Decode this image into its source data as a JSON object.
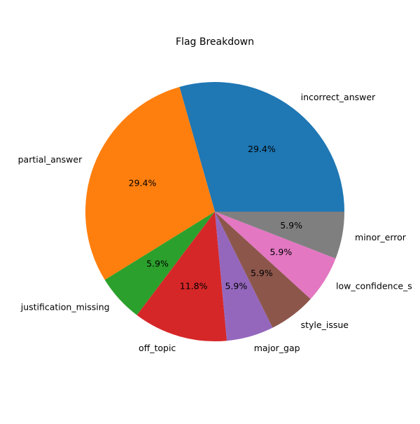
{
  "chart_data": {
    "type": "pie",
    "title": "Flag Breakdown",
    "start_angle_deg": 0,
    "direction": "counterclockwise",
    "slices": [
      {
        "label": "incorrect_answer",
        "value": 5,
        "pct_label": "29.4%",
        "color": "#1f77b4"
      },
      {
        "label": "partial_answer",
        "value": 5,
        "pct_label": "29.4%",
        "color": "#ff7f0e"
      },
      {
        "label": "justification_missing",
        "value": 1,
        "pct_label": "5.9%",
        "color": "#2ca02c"
      },
      {
        "label": "off_topic",
        "value": 2,
        "pct_label": "11.8%",
        "color": "#d62728"
      },
      {
        "label": "major_gap",
        "value": 1,
        "pct_label": "5.9%",
        "color": "#9467bd"
      },
      {
        "label": "style_issue",
        "value": 1,
        "pct_label": "5.9%",
        "color": "#8c564b"
      },
      {
        "label": "low_confidence_s",
        "value": 1,
        "pct_label": "5.9%",
        "color": "#e377c2"
      },
      {
        "label": "minor_error",
        "value": 1,
        "pct_label": "5.9%",
        "color": "#7f7f7f"
      }
    ]
  }
}
